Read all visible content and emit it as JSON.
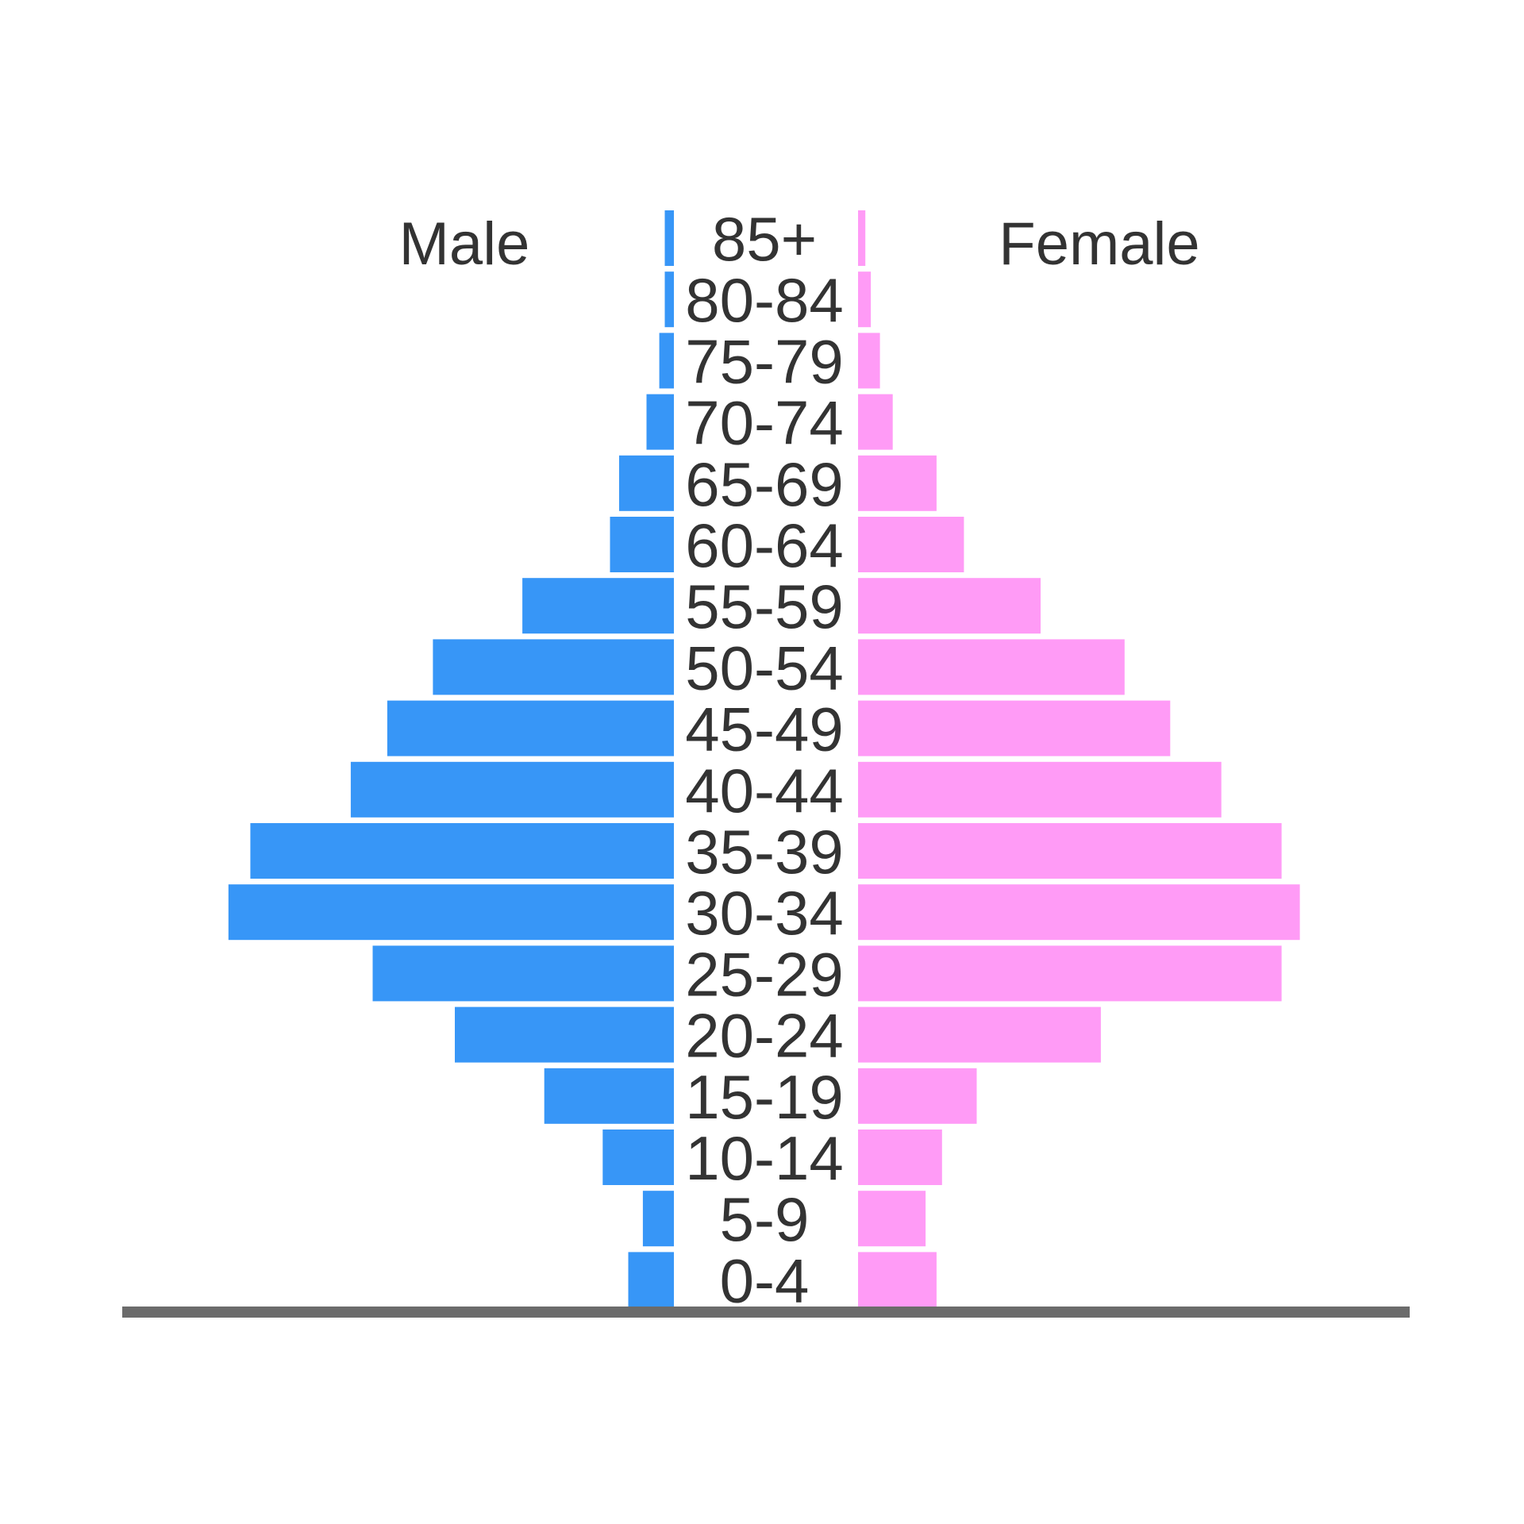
{
  "chart_data": {
    "type": "bar",
    "orientation": "horizontal",
    "style": "population-pyramid",
    "categories": [
      "85+",
      "80-84",
      "75-79",
      "70-74",
      "65-69",
      "60-64",
      "55-59",
      "50-54",
      "45-49",
      "40-44",
      "35-39",
      "30-34",
      "25-29",
      "20-24",
      "15-19",
      "10-14",
      "5-9",
      "0-4"
    ],
    "series": [
      {
        "name": "Male",
        "color": "#3796F7",
        "values": [
          0.5,
          0.5,
          0.8,
          1.5,
          3.0,
          3.5,
          8.3,
          13.2,
          15.7,
          17.7,
          23.2,
          24.4,
          16.5,
          12.0,
          7.1,
          3.9,
          1.7,
          2.5
        ]
      },
      {
        "name": "Female",
        "color": "#FF9BF6",
        "values": [
          0.4,
          0.7,
          1.2,
          1.9,
          4.3,
          5.8,
          10.0,
          14.6,
          17.1,
          19.9,
          23.2,
          24.2,
          23.2,
          13.3,
          6.5,
          4.6,
          3.7,
          4.3
        ]
      }
    ],
    "side_labels": {
      "left": "Male",
      "right": "Female"
    },
    "legend": "none",
    "grid": false,
    "baseline_color": "#6b6b6b"
  }
}
